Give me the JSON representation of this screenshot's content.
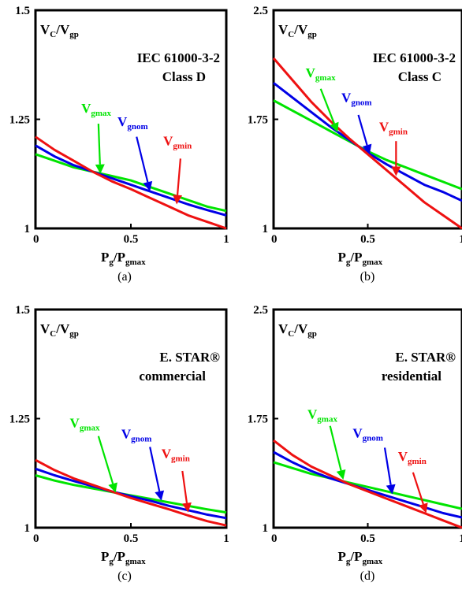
{
  "chart_data": [
    {
      "type": "line",
      "caption": "(a)",
      "ylabel": {
        "main": "V",
        "sub1": "C",
        "mid": "/V",
        "sub2": "gp"
      },
      "xlabel": {
        "main": "P",
        "sub1": "g",
        "mid": "/P",
        "sub2": "gmax"
      },
      "title_lines": [
        "IEC 61000-3-2",
        "Class D"
      ],
      "xlim": [
        0,
        1
      ],
      "ylim": [
        1,
        1.5
      ],
      "x_ticks": [
        "0",
        "0.5",
        "1"
      ],
      "y_ticks": [
        "1",
        "1.25",
        "1.5"
      ],
      "y_tick_values": [
        1,
        1.25,
        1.5
      ],
      "x": [
        0,
        0.1,
        0.2,
        0.3,
        0.4,
        0.5,
        0.6,
        0.7,
        0.8,
        0.9,
        1.0
      ],
      "series": [
        {
          "name": "gmax",
          "color": "#00e400",
          "values": [
            1.17,
            1.155,
            1.14,
            1.13,
            1.12,
            1.11,
            1.095,
            1.08,
            1.065,
            1.05,
            1.04
          ]
        },
        {
          "name": "gnom",
          "color": "#0000e6",
          "values": [
            1.19,
            1.165,
            1.145,
            1.13,
            1.115,
            1.1,
            1.085,
            1.07,
            1.055,
            1.042,
            1.03
          ]
        },
        {
          "name": "gmin",
          "color": "#ee1111",
          "values": [
            1.21,
            1.18,
            1.155,
            1.13,
            1.108,
            1.09,
            1.07,
            1.05,
            1.03,
            1.015,
            1.0
          ]
        }
      ],
      "annotations": [
        {
          "series": "gmax",
          "text_x": 0.24,
          "text_y": 1.265,
          "arrow_from": [
            0.33,
            1.24
          ],
          "arrow_to": [
            0.34,
            1.125
          ]
        },
        {
          "series": "gnom",
          "text_x": 0.43,
          "text_y": 1.235,
          "arrow_from": [
            0.53,
            1.21
          ],
          "arrow_to": [
            0.6,
            1.085
          ]
        },
        {
          "series": "gmin",
          "text_x": 0.67,
          "text_y": 1.19,
          "arrow_from": [
            0.76,
            1.16
          ],
          "arrow_to": [
            0.74,
            1.055
          ]
        }
      ]
    },
    {
      "type": "line",
      "caption": "(b)",
      "ylabel": {
        "main": "V",
        "sub1": "C",
        "mid": "/V",
        "sub2": "gp"
      },
      "xlabel": {
        "main": "P",
        "sub1": "g",
        "mid": "/P",
        "sub2": "gmax"
      },
      "title_lines": [
        "IEC 61000-3-2",
        "Class C"
      ],
      "xlim": [
        0,
        1
      ],
      "ylim": [
        1,
        2.5
      ],
      "x_ticks": [
        "0",
        "0.5",
        "1"
      ],
      "y_ticks": [
        "1",
        "1.75",
        "2.5"
      ],
      "y_tick_values": [
        1,
        1.75,
        2.5
      ],
      "x": [
        0,
        0.1,
        0.2,
        0.3,
        0.4,
        0.5,
        0.6,
        0.7,
        0.8,
        0.9,
        1.0
      ],
      "series": [
        {
          "name": "gmax",
          "color": "#00e400",
          "values": [
            1.88,
            1.81,
            1.74,
            1.67,
            1.6,
            1.53,
            1.47,
            1.42,
            1.37,
            1.32,
            1.27
          ]
        },
        {
          "name": "gnom",
          "color": "#0000e6",
          "values": [
            2.0,
            1.9,
            1.8,
            1.7,
            1.61,
            1.52,
            1.44,
            1.37,
            1.3,
            1.25,
            1.19
          ]
        },
        {
          "name": "gmin",
          "color": "#ee1111",
          "values": [
            2.17,
            2.02,
            1.87,
            1.74,
            1.62,
            1.51,
            1.4,
            1.29,
            1.18,
            1.09,
            1.0
          ]
        }
      ],
      "annotations": [
        {
          "series": "gmax",
          "text_x": 0.17,
          "text_y": 2.04,
          "arrow_from": [
            0.25,
            1.96
          ],
          "arrow_to": [
            0.34,
            1.66
          ]
        },
        {
          "series": "gnom",
          "text_x": 0.36,
          "text_y": 1.87,
          "arrow_from": [
            0.45,
            1.78
          ],
          "arrow_to": [
            0.51,
            1.51
          ]
        },
        {
          "series": "gmin",
          "text_x": 0.56,
          "text_y": 1.67,
          "arrow_from": [
            0.65,
            1.6
          ],
          "arrow_to": [
            0.65,
            1.36
          ]
        }
      ]
    },
    {
      "type": "line",
      "caption": "(c)",
      "ylabel": {
        "main": "V",
        "sub1": "C",
        "mid": "/V",
        "sub2": "gp"
      },
      "xlabel": {
        "main": "P",
        "sub1": "g",
        "mid": "/P",
        "sub2": "gmax"
      },
      "title_lines": [
        "E. STAR®",
        "commercial"
      ],
      "xlim": [
        0,
        1
      ],
      "ylim": [
        1,
        1.5
      ],
      "x_ticks": [
        "0",
        "0.5",
        "1"
      ],
      "y_ticks": [
        "1",
        "1.25",
        "1.5"
      ],
      "y_tick_values": [
        1,
        1.25,
        1.5
      ],
      "x": [
        0,
        0.1,
        0.2,
        0.3,
        0.4,
        0.5,
        0.6,
        0.7,
        0.8,
        0.9,
        1.0
      ],
      "series": [
        {
          "name": "gmax",
          "color": "#00e400",
          "values": [
            1.12,
            1.108,
            1.098,
            1.09,
            1.082,
            1.074,
            1.066,
            1.058,
            1.05,
            1.042,
            1.035
          ]
        },
        {
          "name": "gnom",
          "color": "#0000e6",
          "values": [
            1.135,
            1.12,
            1.107,
            1.095,
            1.083,
            1.072,
            1.062,
            1.05,
            1.04,
            1.03,
            1.022
          ]
        },
        {
          "name": "gmin",
          "color": "#ee1111",
          "values": [
            1.155,
            1.132,
            1.113,
            1.098,
            1.083,
            1.068,
            1.055,
            1.042,
            1.028,
            1.015,
            1.005
          ]
        }
      ],
      "annotations": [
        {
          "series": "gmax",
          "text_x": 0.18,
          "text_y": 1.23,
          "arrow_from": [
            0.33,
            1.21
          ],
          "arrow_to": [
            0.42,
            1.08
          ]
        },
        {
          "series": "gnom",
          "text_x": 0.45,
          "text_y": 1.205,
          "arrow_from": [
            0.6,
            1.185
          ],
          "arrow_to": [
            0.66,
            1.062
          ]
        },
        {
          "series": "gmin",
          "text_x": 0.66,
          "text_y": 1.16,
          "arrow_from": [
            0.77,
            1.13
          ],
          "arrow_to": [
            0.8,
            1.035
          ]
        }
      ]
    },
    {
      "type": "line",
      "caption": "(d)",
      "ylabel": {
        "main": "V",
        "sub1": "C",
        "mid": "/V",
        "sub2": "gp"
      },
      "xlabel": {
        "main": "P",
        "sub1": "g",
        "mid": "/P",
        "sub2": "gmax"
      },
      "title_lines": [
        "E. STAR®",
        "residential"
      ],
      "xlim": [
        0,
        1
      ],
      "ylim": [
        1,
        2.5
      ],
      "x_ticks": [
        "0",
        "0.5",
        "1"
      ],
      "y_ticks": [
        "1",
        "1.75",
        "2.5"
      ],
      "y_tick_values": [
        1,
        1.75,
        2.5
      ],
      "x": [
        0,
        0.1,
        0.2,
        0.3,
        0.4,
        0.5,
        0.6,
        0.7,
        0.8,
        0.9,
        1.0
      ],
      "series": [
        {
          "name": "gmax",
          "color": "#00e400",
          "values": [
            1.45,
            1.41,
            1.37,
            1.34,
            1.31,
            1.28,
            1.25,
            1.22,
            1.19,
            1.16,
            1.13
          ]
        },
        {
          "name": "gnom",
          "color": "#0000e6",
          "values": [
            1.52,
            1.45,
            1.39,
            1.34,
            1.3,
            1.26,
            1.22,
            1.18,
            1.14,
            1.1,
            1.07
          ]
        },
        {
          "name": "gmin",
          "color": "#ee1111",
          "values": [
            1.6,
            1.5,
            1.42,
            1.36,
            1.3,
            1.25,
            1.2,
            1.15,
            1.1,
            1.05,
            1.0
          ]
        }
      ],
      "annotations": [
        {
          "series": "gmax",
          "text_x": 0.18,
          "text_y": 1.75,
          "arrow_from": [
            0.3,
            1.7
          ],
          "arrow_to": [
            0.37,
            1.33
          ]
        },
        {
          "series": "gnom",
          "text_x": 0.42,
          "text_y": 1.62,
          "arrow_from": [
            0.59,
            1.55
          ],
          "arrow_to": [
            0.63,
            1.23
          ]
        },
        {
          "series": "gmin",
          "text_x": 0.66,
          "text_y": 1.46,
          "arrow_from": [
            0.74,
            1.38
          ],
          "arrow_to": [
            0.81,
            1.1
          ]
        }
      ]
    }
  ]
}
